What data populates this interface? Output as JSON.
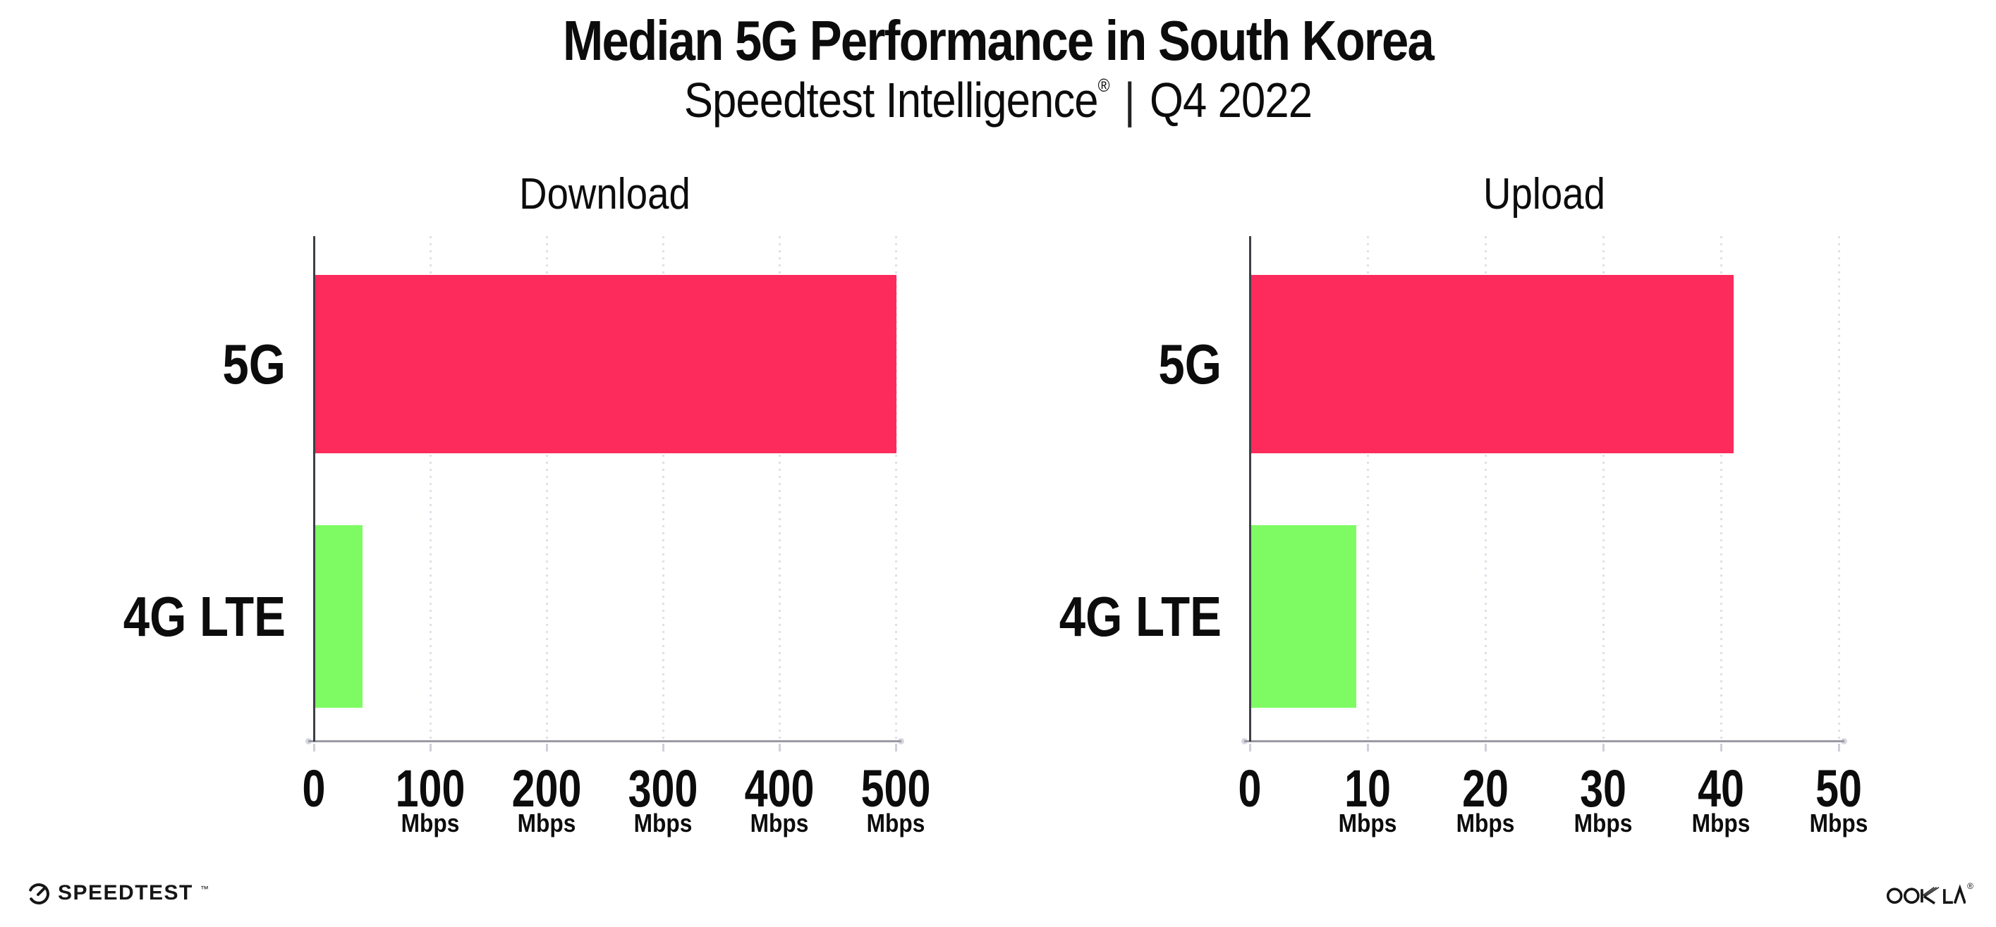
{
  "header": {
    "title": "Median 5G Performance in South Korea",
    "subtitle": {
      "brand": "Speedtest Intelligence",
      "registered": "®",
      "divider": "|",
      "period": "Q4 2022"
    }
  },
  "chart_data": [
    {
      "type": "bar",
      "orientation": "horizontal",
      "title": "Download",
      "categories": [
        "5G",
        "4G LTE"
      ],
      "values": [
        500,
        41
      ],
      "unit": "Mbps",
      "xlim": [
        0,
        500
      ],
      "xticks": [
        0,
        100,
        200,
        300,
        400,
        500
      ],
      "xtick_unit_label": "Mbps",
      "bar_colors": [
        "#FD2B5B",
        "#7EFB63"
      ],
      "grid": "dotted vertical gridlines at each tick",
      "legend": "none"
    },
    {
      "type": "bar",
      "orientation": "horizontal",
      "title": "Upload",
      "categories": [
        "5G",
        "4G LTE"
      ],
      "values": [
        41,
        9
      ],
      "unit": "Mbps",
      "xlim": [
        0,
        50
      ],
      "xticks": [
        0,
        10,
        20,
        30,
        40,
        50
      ],
      "xtick_unit_label": "Mbps",
      "bar_colors": [
        "#FD2B5B",
        "#7EFB63"
      ],
      "grid": "dotted vertical gridlines at each tick",
      "legend": "none"
    }
  ],
  "colors": {
    "bar_5g": "#FD2B5B",
    "bar_4g_lte": "#7EFB63",
    "x_axis_line": "#9a9aa2",
    "y_axis_line": "#3e3e46",
    "gridline": "#e0e0ea",
    "text": "#0c0c0c",
    "background": "#ffffff"
  },
  "footer": {
    "speedtest": {
      "label": "SPEEDTEST",
      "trademark": "™",
      "icon": "speedtest-gauge-icon"
    },
    "ookla": {
      "label": "OOKLA",
      "registered": "®",
      "icon": "ookla-wordmark"
    }
  }
}
